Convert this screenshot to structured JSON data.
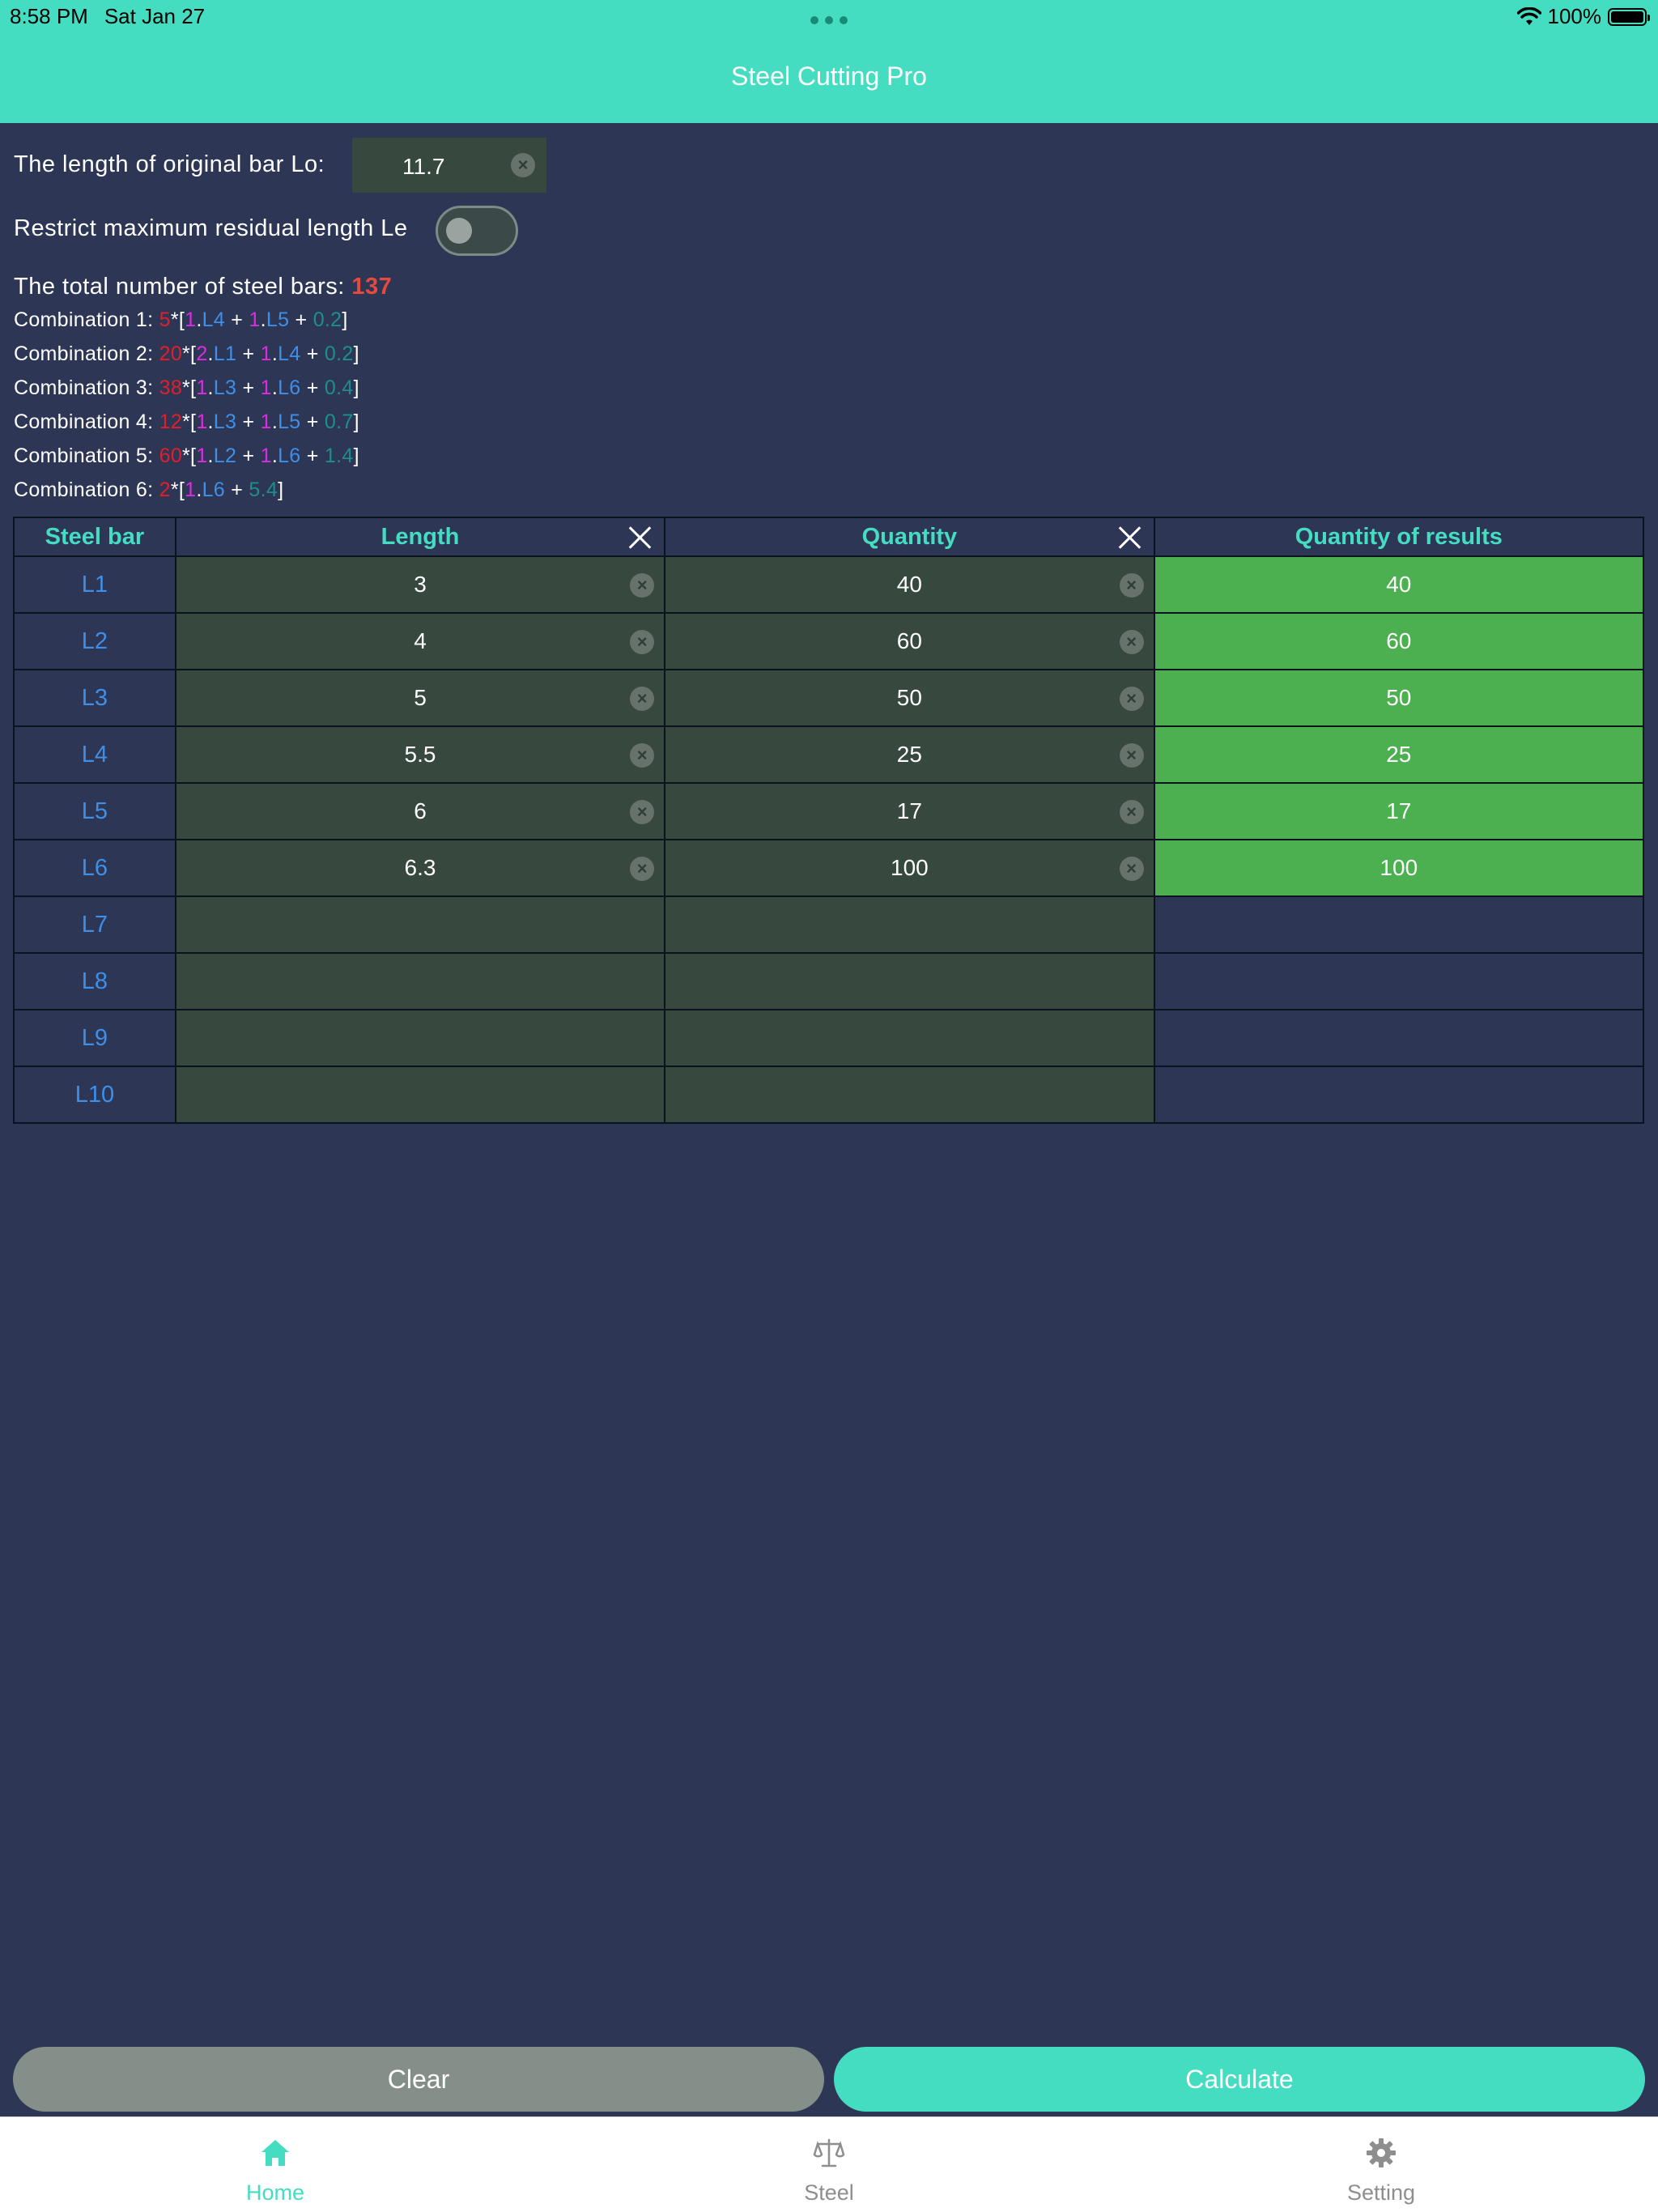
{
  "status_bar": {
    "time": "8:58 PM",
    "date": "Sat Jan 27",
    "battery": "100%",
    "battery_level": 1.0
  },
  "header": {
    "title": "Steel Cutting Pro"
  },
  "original_bar": {
    "label": "The length of original bar Lo:",
    "value": "11.7"
  },
  "restrict": {
    "label": "Restrict maximum residual length Le",
    "enabled": false
  },
  "total": {
    "label": "The total number of steel bars:",
    "value": "137"
  },
  "combinations": [
    {
      "label": "Combination 1:",
      "count": "5",
      "parts": [
        {
          "n": "1",
          "bar": "L4"
        },
        {
          "n": "1",
          "bar": "L5"
        }
      ],
      "rest": "0.2"
    },
    {
      "label": "Combination 2:",
      "count": "20",
      "parts": [
        {
          "n": "2",
          "bar": "L1"
        },
        {
          "n": "1",
          "bar": "L4"
        }
      ],
      "rest": "0.2"
    },
    {
      "label": "Combination 3:",
      "count": "38",
      "parts": [
        {
          "n": "1",
          "bar": "L3"
        },
        {
          "n": "1",
          "bar": "L6"
        }
      ],
      "rest": "0.4"
    },
    {
      "label": "Combination 4:",
      "count": "12",
      "parts": [
        {
          "n": "1",
          "bar": "L3"
        },
        {
          "n": "1",
          "bar": "L5"
        }
      ],
      "rest": "0.7"
    },
    {
      "label": "Combination 5:",
      "count": "60",
      "parts": [
        {
          "n": "1",
          "bar": "L2"
        },
        {
          "n": "1",
          "bar": "L6"
        }
      ],
      "rest": "1.4"
    },
    {
      "label": "Combination 6:",
      "count": "2",
      "parts": [
        {
          "n": "1",
          "bar": "L6"
        }
      ],
      "rest": "5.4"
    }
  ],
  "table": {
    "headers": {
      "bar": "Steel bar",
      "length": "Length",
      "quantity": "Quantity",
      "results": "Quantity of results"
    },
    "rows": [
      {
        "bar": "L1",
        "length": "3",
        "quantity": "40",
        "result": "40"
      },
      {
        "bar": "L2",
        "length": "4",
        "quantity": "60",
        "result": "60"
      },
      {
        "bar": "L3",
        "length": "5",
        "quantity": "50",
        "result": "50"
      },
      {
        "bar": "L4",
        "length": "5.5",
        "quantity": "25",
        "result": "25"
      },
      {
        "bar": "L5",
        "length": "6",
        "quantity": "17",
        "result": "17"
      },
      {
        "bar": "L6",
        "length": "6.3",
        "quantity": "100",
        "result": "100"
      },
      {
        "bar": "L7",
        "length": "",
        "quantity": "",
        "result": ""
      },
      {
        "bar": "L8",
        "length": "",
        "quantity": "",
        "result": ""
      },
      {
        "bar": "L9",
        "length": "",
        "quantity": "",
        "result": ""
      },
      {
        "bar": "L10",
        "length": "",
        "quantity": "",
        "result": ""
      }
    ]
  },
  "buttons": {
    "clear": "Clear",
    "calculate": "Calculate"
  },
  "tabs": [
    {
      "label": "Home",
      "icon": "home-icon",
      "active": true
    },
    {
      "label": "Steel",
      "icon": "scale-icon",
      "active": false
    },
    {
      "label": "Setting",
      "icon": "gear-icon",
      "active": false
    }
  ],
  "colors": {
    "accent": "#45ddc1",
    "background": "#2e3656",
    "input_bg": "#37483f",
    "result_bg": "#4caf50",
    "count_red": "#e01f2c",
    "multiplier_magenta": "#d92ee0",
    "bar_blue": "#3e8fe8",
    "rest_teal": "#1c8f8a",
    "total_red": "#e64a3d"
  }
}
